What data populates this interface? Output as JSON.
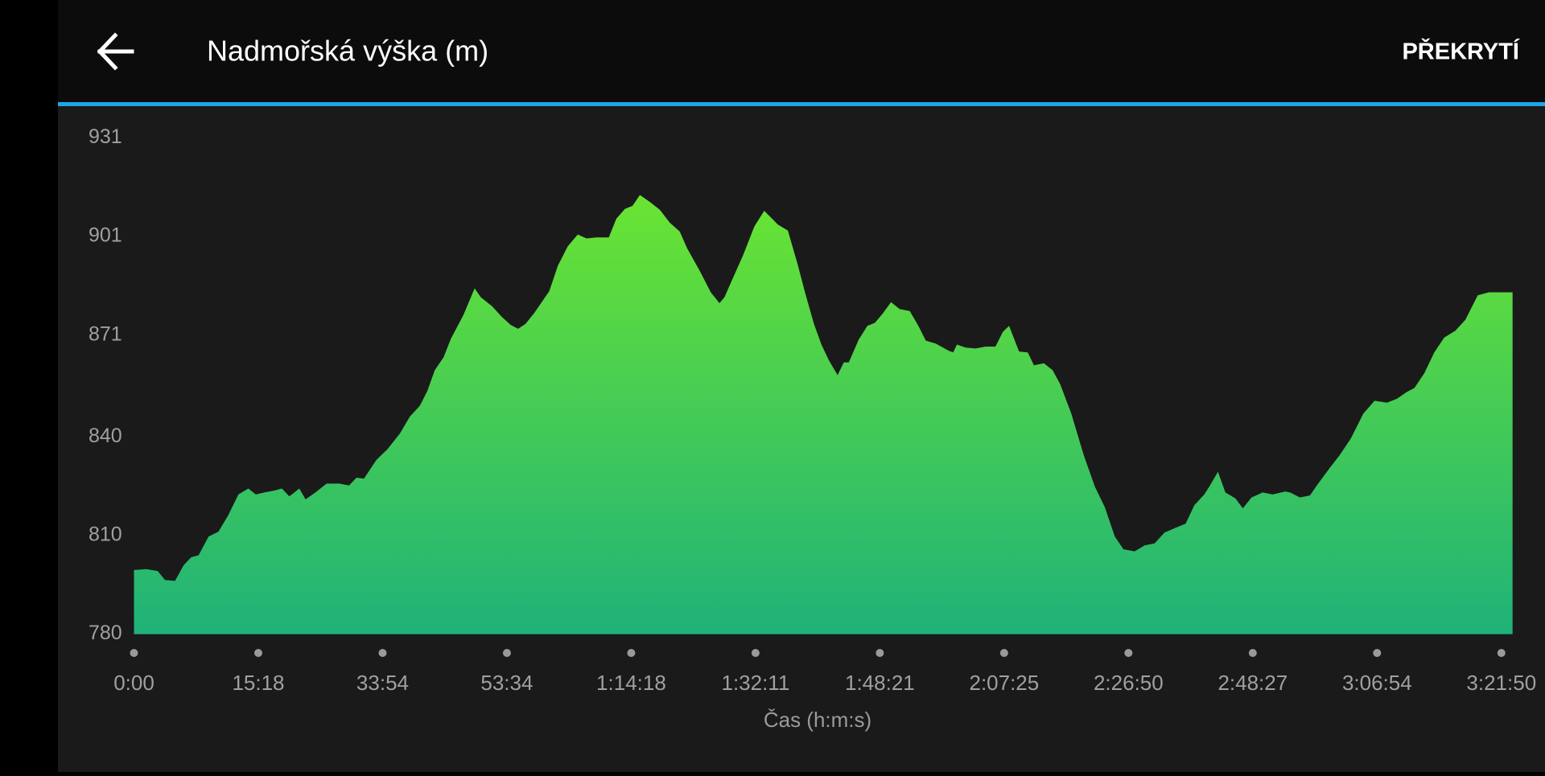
{
  "header": {
    "title": "Nadmořská výška (m)",
    "action": "PŘEKRYTÍ"
  },
  "chart_data": {
    "type": "area",
    "x": [
      0,
      0.1,
      0.19,
      0.25,
      0.33,
      0.4,
      0.46,
      0.52,
      0.6,
      0.68,
      0.76,
      0.84,
      0.92,
      0.98,
      1.05,
      1.13,
      1.19,
      1.25,
      1.33,
      1.38,
      1.46,
      1.55,
      1.65,
      1.73,
      1.79,
      1.85,
      1.95,
      2.04,
      2.14,
      2.22,
      2.3,
      2.36,
      2.42,
      2.49,
      2.55,
      2.65,
      2.74,
      2.79,
      2.88,
      2.96,
      3.03,
      3.09,
      3.15,
      3.22,
      3.28,
      3.34,
      3.41,
      3.49,
      3.57,
      3.64,
      3.72,
      3.82,
      3.88,
      3.95,
      4.01,
      4.07,
      4.15,
      4.23,
      4.31,
      4.39,
      4.45,
      4.55,
      4.64,
      4.71,
      4.75,
      4.82,
      4.9,
      4.99,
      5.07,
      5.18,
      5.26,
      5.34,
      5.4,
      5.47,
      5.53,
      5.59,
      5.66,
      5.71,
      5.75,
      5.83,
      5.9,
      5.96,
      6.02,
      6.09,
      6.16,
      6.24,
      6.31,
      6.37,
      6.45,
      6.55,
      6.59,
      6.62,
      6.69,
      6.77,
      6.85,
      6.93,
      6.99,
      7.04,
      7.12,
      7.19,
      7.24,
      7.32,
      7.39,
      7.45,
      7.54,
      7.64,
      7.73,
      7.81,
      7.89,
      7.96,
      8.05,
      8.13,
      8.21,
      8.29,
      8.38,
      8.46,
      8.53,
      8.61,
      8.65,
      8.72,
      8.78,
      8.86,
      8.92,
      8.99,
      9.08,
      9.16,
      9.26,
      9.3,
      9.38,
      9.46,
      9.52,
      9.62,
      9.7,
      9.79,
      9.89,
      9.98,
      10.08,
      10.16,
      10.24,
      10.3,
      10.38,
      10.46,
      10.54,
      10.63,
      10.71,
      10.81,
      10.9,
      11.09
    ],
    "values": [
      799.5,
      799.8,
      799.2,
      796.5,
      796.2,
      801.0,
      803.4,
      804.0,
      809.7,
      811.2,
      816.3,
      822.5,
      824.3,
      822.5,
      823.1,
      823.7,
      824.3,
      821.9,
      824.3,
      821.0,
      823.1,
      825.8,
      825.8,
      825.2,
      827.6,
      827.3,
      833.0,
      836.3,
      841.1,
      846.2,
      849.5,
      854.0,
      860.3,
      864.2,
      869.9,
      877.1,
      885.2,
      882.5,
      879.8,
      876.5,
      874.1,
      872.9,
      874.4,
      877.7,
      881.0,
      884.3,
      892.1,
      898.0,
      901.6,
      900.4,
      900.7,
      900.7,
      906.4,
      909.4,
      910.3,
      913.6,
      911.5,
      909.1,
      905.2,
      902.5,
      897.4,
      890.6,
      884.0,
      880.7,
      882.5,
      888.5,
      895.3,
      904.0,
      908.8,
      904.6,
      902.8,
      892.4,
      883.7,
      874.4,
      868.1,
      863.3,
      858.8,
      862.7,
      862.7,
      869.6,
      873.8,
      874.7,
      877.4,
      881.0,
      878.9,
      878.3,
      873.8,
      869.3,
      868.4,
      866.3,
      865.7,
      868.1,
      867.2,
      866.9,
      867.5,
      867.5,
      872.0,
      873.8,
      866.0,
      865.7,
      861.8,
      862.4,
      860.3,
      856.1,
      847.1,
      834.5,
      824.9,
      818.6,
      809.7,
      805.8,
      805.2,
      807.0,
      807.6,
      810.9,
      812.4,
      813.6,
      819.2,
      822.5,
      824.9,
      829.4,
      823.1,
      821.3,
      818.3,
      821.6,
      823.1,
      822.5,
      823.4,
      823.1,
      821.6,
      822.2,
      825.5,
      830.6,
      834.5,
      839.6,
      847.1,
      851.0,
      850.4,
      851.6,
      853.7,
      854.9,
      859.4,
      865.7,
      870.2,
      872.3,
      875.6,
      883.1,
      884.0,
      884.0
    ],
    "xlim": [
      0,
      11.09
    ],
    "ylim": [
      780,
      931
    ],
    "yticks": [
      780,
      810,
      840,
      871,
      901,
      931
    ],
    "xticks": [
      {
        "value": 0,
        "label": "0:00"
      },
      {
        "value": 1,
        "label": "15:18"
      },
      {
        "value": 2,
        "label": "33:54"
      },
      {
        "value": 3,
        "label": "53:34"
      },
      {
        "value": 4,
        "label": "1:14:18"
      },
      {
        "value": 5,
        "label": "1:32:11"
      },
      {
        "value": 6,
        "label": "1:48:21"
      },
      {
        "value": 7,
        "label": "2:07:25"
      },
      {
        "value": 8,
        "label": "2:26:50"
      },
      {
        "value": 9,
        "label": "2:48:27"
      },
      {
        "value": 10,
        "label": "3:06:54"
      },
      {
        "value": 11,
        "label": "3:21:50"
      }
    ],
    "xlabel": "Čas (h:m:s)",
    "gradient": [
      "#6ae432",
      "#1fb279"
    ]
  }
}
